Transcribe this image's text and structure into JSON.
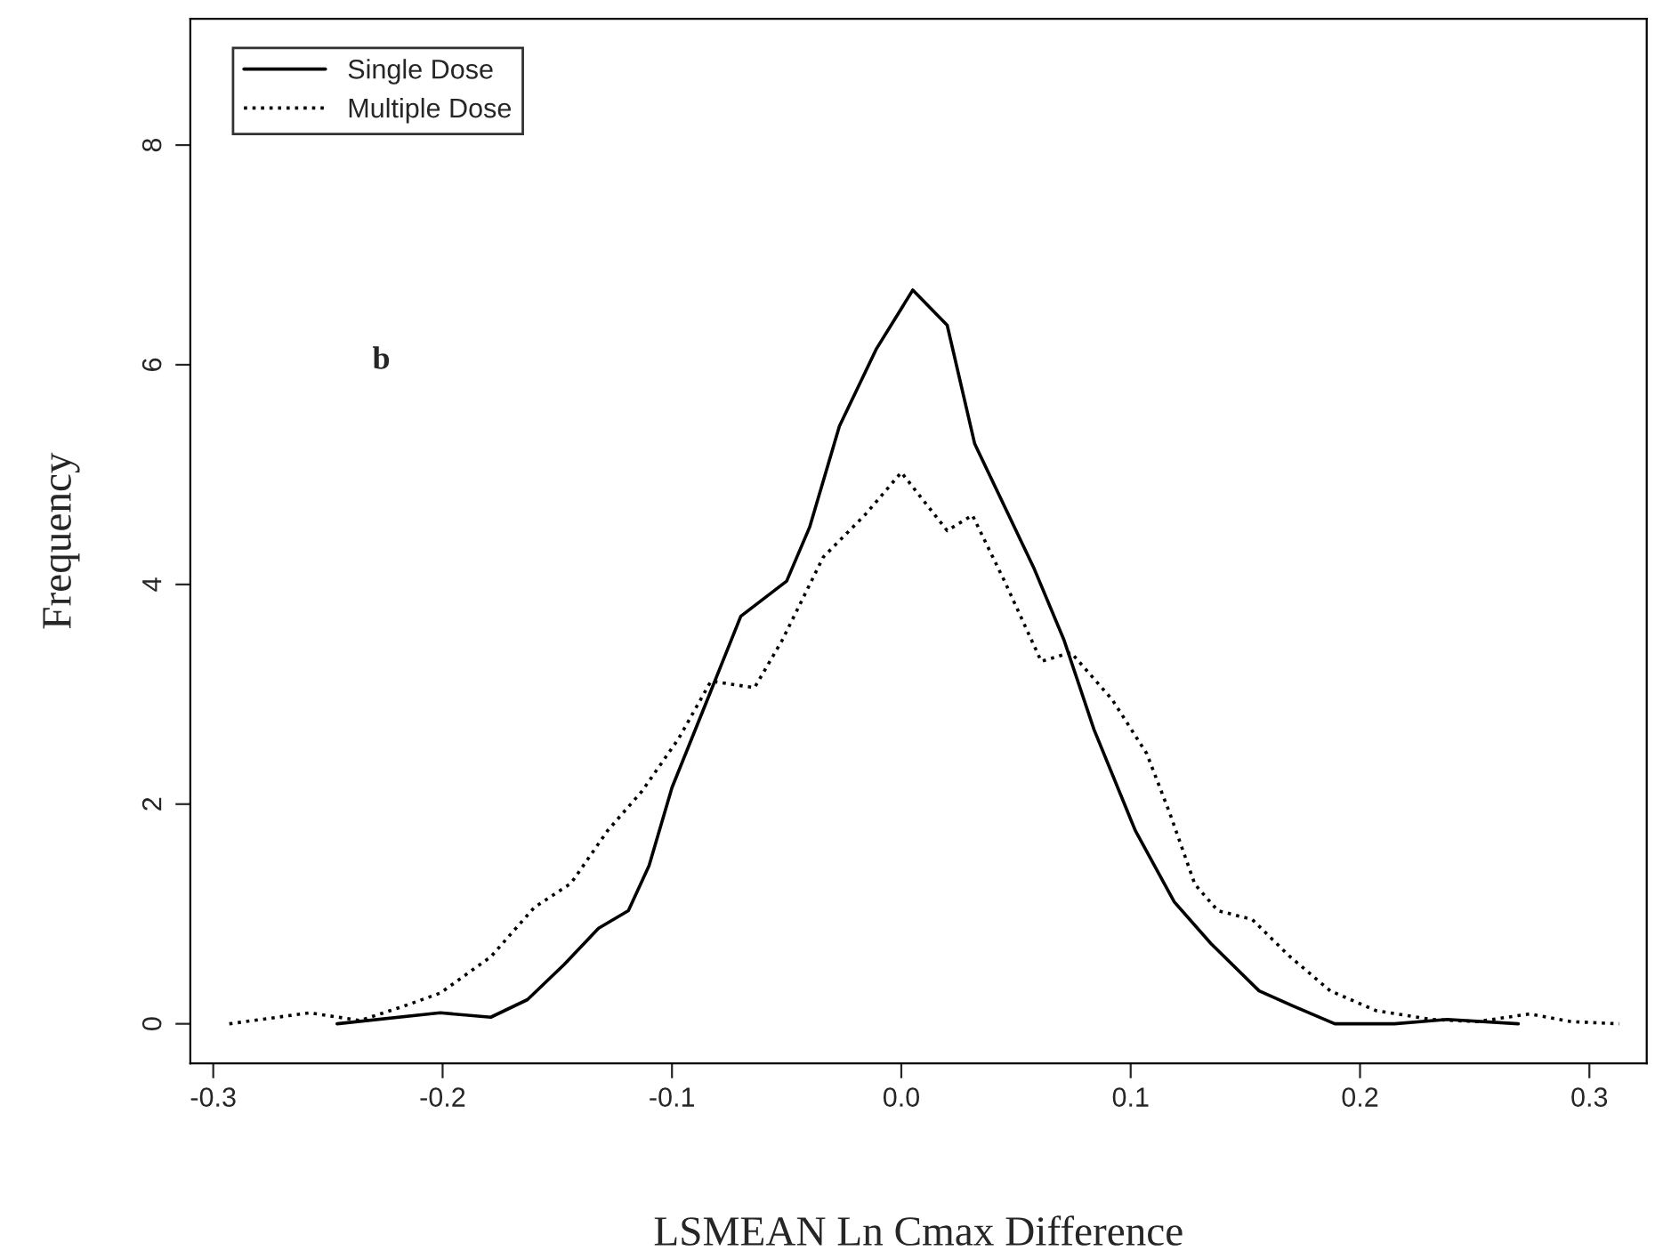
{
  "chart_data": {
    "type": "line",
    "xlabel": "LSMEAN Ln Cmax Difference",
    "ylabel": "Frequency",
    "annotations": [
      "b"
    ],
    "xlim": [
      -0.31,
      0.325
    ],
    "ylim": [
      -0.36,
      9.15
    ],
    "xticks": [
      -0.3,
      -0.2,
      -0.1,
      {
        "value": 0,
        "label": "0.0"
      },
      0.1,
      0.2,
      0.3
    ],
    "yticks": [
      0,
      2,
      4,
      6,
      8
    ],
    "grid": false,
    "legend": "top left",
    "marker": "none",
    "series": [
      {
        "name": "Single Dose",
        "color": "#000000",
        "line_style": "solid",
        "x": [
          -0.246,
          -0.201,
          -0.179,
          -0.163,
          -0.147,
          -0.132,
          -0.119,
          -0.11,
          -0.1,
          -0.084,
          -0.07,
          -0.05,
          -0.04,
          -0.027,
          -0.011,
          0.005,
          0.02,
          0.032,
          0.058,
          0.071,
          0.084,
          0.102,
          0.119,
          0.135,
          0.156,
          0.171,
          0.189,
          0.215,
          0.238,
          0.269
        ],
        "values": [
          0,
          0.1,
          0.06,
          0.22,
          0.54,
          0.87,
          1.03,
          1.44,
          2.15,
          2.98,
          3.71,
          4.03,
          4.52,
          5.44,
          6.14,
          6.68,
          6.36,
          5.28,
          4.14,
          3.49,
          2.68,
          1.76,
          1.11,
          0.73,
          0.3,
          0.16,
          0,
          0,
          0.04,
          0
        ]
      },
      {
        "name": "Multiple Dose",
        "color": "#000000",
        "line_style": "dotted",
        "x": [
          -0.293,
          -0.258,
          -0.236,
          -0.217,
          -0.201,
          -0.179,
          -0.16,
          -0.144,
          -0.128,
          -0.113,
          -0.097,
          -0.083,
          -0.064,
          -0.052,
          -0.034,
          -0.016,
          0.0,
          0.02,
          0.031,
          0.045,
          0.061,
          0.074,
          0.092,
          0.107,
          0.117,
          0.128,
          0.138,
          0.153,
          0.169,
          0.187,
          0.207,
          0.231,
          0.251,
          0.274,
          0.292,
          0.313
        ],
        "values": [
          0,
          0.1,
          0.03,
          0.16,
          0.28,
          0.61,
          1.06,
          1.28,
          1.76,
          2.12,
          2.6,
          3.12,
          3.06,
          3.49,
          4.25,
          4.63,
          5.02,
          4.49,
          4.63,
          4.03,
          3.3,
          3.38,
          2.95,
          2.46,
          1.92,
          1.27,
          1.03,
          0.95,
          0.62,
          0.3,
          0.12,
          0.04,
          0.02,
          0.09,
          0.02,
          0
        ]
      }
    ]
  }
}
